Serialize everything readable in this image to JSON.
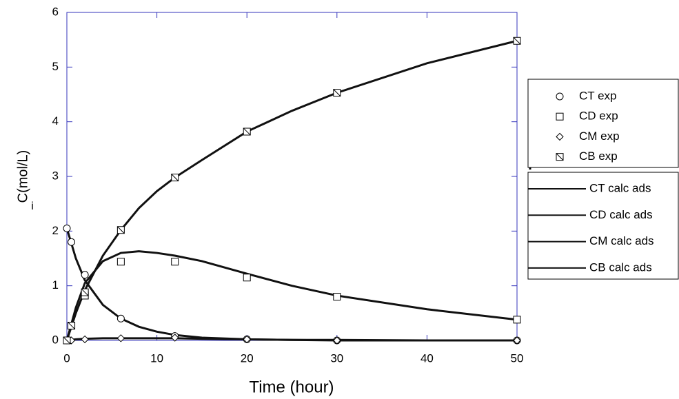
{
  "chart_data": {
    "type": "line",
    "xlabel": "Time (hour)",
    "ylabel": "C(mol/L)",
    "ylabel_subscript": "i",
    "xlim": [
      0,
      50
    ],
    "ylim": [
      0,
      6
    ],
    "xticks": [
      0,
      10,
      20,
      30,
      40,
      50
    ],
    "yticks": [
      0,
      1,
      2,
      3,
      4,
      5,
      6
    ],
    "axis_color": "#3333bb",
    "series": [
      {
        "name": "CT exp",
        "type": "scatter",
        "marker": "circle",
        "color": "#000000",
        "x": [
          0,
          0.5,
          2,
          6,
          12,
          20,
          30,
          50
        ],
        "values": [
          2.05,
          1.8,
          1.2,
          0.4,
          0.08,
          0.02,
          0,
          0
        ]
      },
      {
        "name": "CD exp",
        "type": "scatter",
        "marker": "square",
        "color": "#000000",
        "x": [
          0,
          0.5,
          2,
          6,
          12,
          20,
          30,
          50
        ],
        "values": [
          0,
          0.27,
          0.82,
          1.44,
          1.44,
          1.15,
          0.8,
          0.38
        ]
      },
      {
        "name": "CM exp",
        "type": "scatter",
        "marker": "diamond",
        "color": "#000000",
        "x": [
          0,
          0.5,
          2,
          6,
          12,
          20,
          30,
          50
        ],
        "values": [
          0,
          0,
          0.02,
          0.04,
          0.05,
          0.02,
          0,
          0
        ]
      },
      {
        "name": "CB exp",
        "type": "scatter",
        "marker": "square-x",
        "color": "#000000",
        "x": [
          0,
          0.5,
          2,
          6,
          12,
          20,
          30,
          50
        ],
        "values": [
          0,
          0.27,
          0.88,
          2.02,
          2.98,
          3.82,
          4.53,
          5.48
        ]
      },
      {
        "name": "CT calc ads",
        "type": "line",
        "color": "#111111",
        "x": [
          0,
          1,
          2,
          4,
          6,
          8,
          10,
          12,
          15,
          20,
          25,
          30,
          40,
          50
        ],
        "values": [
          2.05,
          1.5,
          1.1,
          0.65,
          0.4,
          0.25,
          0.16,
          0.1,
          0.05,
          0.02,
          0.01,
          0,
          0,
          0
        ]
      },
      {
        "name": "CD calc ads",
        "type": "line",
        "color": "#111111",
        "x": [
          0,
          1,
          2,
          4,
          6,
          8,
          10,
          12,
          15,
          20,
          25,
          30,
          40,
          50
        ],
        "values": [
          0,
          0.6,
          1.05,
          1.45,
          1.6,
          1.63,
          1.6,
          1.55,
          1.45,
          1.22,
          1.0,
          0.82,
          0.57,
          0.38
        ]
      },
      {
        "name": "CM calc ads",
        "type": "line",
        "color": "#111111",
        "x": [
          0,
          1,
          2,
          4,
          6,
          8,
          10,
          12,
          15,
          20,
          25,
          30,
          40,
          50
        ],
        "values": [
          0,
          0.02,
          0.03,
          0.04,
          0.04,
          0.04,
          0.04,
          0.04,
          0.03,
          0.02,
          0.01,
          0.01,
          0,
          0
        ]
      },
      {
        "name": "CB calc ads",
        "type": "line",
        "color": "#111111",
        "x": [
          0,
          1,
          2,
          4,
          6,
          8,
          10,
          12,
          15,
          20,
          25,
          30,
          40,
          50
        ],
        "values": [
          0,
          0.5,
          0.92,
          1.55,
          2.02,
          2.42,
          2.73,
          2.98,
          3.3,
          3.82,
          4.2,
          4.53,
          5.07,
          5.48
        ]
      }
    ]
  }
}
